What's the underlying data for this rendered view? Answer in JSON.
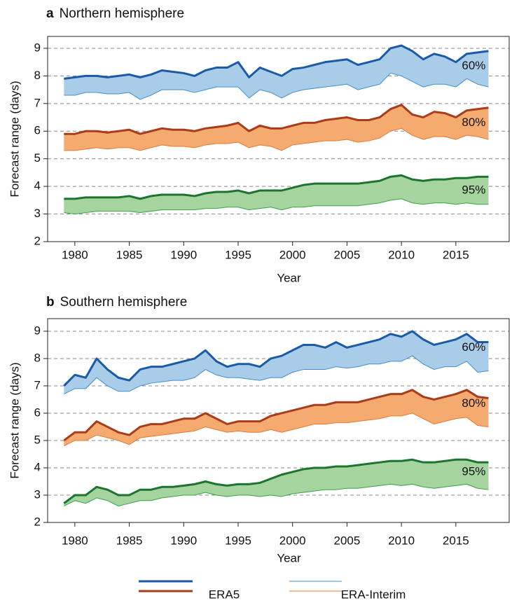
{
  "chart_data": [
    {
      "type": "line",
      "panel": "a",
      "title": "Northern hemisphere",
      "x_label": "Year",
      "y_label": "Forecast range (days)",
      "xlim": [
        1977.5,
        2019.9
      ],
      "ylim": [
        2,
        9.43
      ],
      "xticks": [
        1980,
        1985,
        1990,
        1995,
        2000,
        2005,
        2010,
        2015
      ],
      "yticks": [
        2,
        3,
        4,
        5,
        6,
        7,
        8,
        9
      ],
      "grid": true,
      "x": [
        1979,
        1980,
        1981,
        1982,
        1983,
        1984,
        1985,
        1986,
        1987,
        1988,
        1989,
        1990,
        1991,
        1992,
        1993,
        1994,
        1995,
        1996,
        1997,
        1998,
        1999,
        2000,
        2001,
        2002,
        2003,
        2004,
        2005,
        2006,
        2007,
        2008,
        2009,
        2010,
        2011,
        2012,
        2013,
        2014,
        2015,
        2016,
        2017,
        2018
      ],
      "bands": [
        {
          "label": "60%",
          "fill": "#a9cde8",
          "upper": {
            "color": "#1a5aa6",
            "width": 3,
            "values": [
              7.9,
              7.95,
              8.0,
              8.0,
              7.95,
              8.0,
              8.05,
              7.95,
              8.05,
              8.2,
              8.15,
              8.1,
              8.0,
              8.2,
              8.3,
              8.3,
              8.5,
              7.95,
              8.3,
              8.15,
              8.0,
              8.25,
              8.3,
              8.4,
              8.5,
              8.55,
              8.6,
              8.4,
              8.5,
              8.6,
              9.0,
              9.1,
              8.9,
              8.6,
              8.8,
              8.7,
              8.5,
              8.8,
              8.85,
              8.9
            ]
          },
          "lower": {
            "color": "#3d8fd1",
            "width": 1,
            "values": [
              7.3,
              7.3,
              7.4,
              7.4,
              7.35,
              7.35,
              7.4,
              7.15,
              7.3,
              7.5,
              7.5,
              7.5,
              7.4,
              7.5,
              7.6,
              7.6,
              7.6,
              7.2,
              7.5,
              7.4,
              7.2,
              7.4,
              7.5,
              7.55,
              7.6,
              7.65,
              7.7,
              7.5,
              7.6,
              7.7,
              8.1,
              8.0,
              7.8,
              7.6,
              7.7,
              7.7,
              7.6,
              7.9,
              7.7,
              7.6
            ]
          }
        },
        {
          "label": "80%",
          "fill": "#f5aa70",
          "upper": {
            "color": "#a83c1c",
            "width": 3,
            "values": [
              5.9,
              5.9,
              6.0,
              6.0,
              5.95,
              6.0,
              6.05,
              5.9,
              6.0,
              6.1,
              6.05,
              6.05,
              6.0,
              6.1,
              6.15,
              6.2,
              6.3,
              6.0,
              6.2,
              6.1,
              6.1,
              6.2,
              6.3,
              6.3,
              6.4,
              6.45,
              6.5,
              6.4,
              6.4,
              6.5,
              6.8,
              6.95,
              6.6,
              6.5,
              6.7,
              6.65,
              6.5,
              6.75,
              6.8,
              6.85
            ]
          },
          "lower": {
            "color": "#e8782e",
            "width": 1,
            "values": [
              5.3,
              5.3,
              5.35,
              5.4,
              5.35,
              5.4,
              5.4,
              5.3,
              5.4,
              5.5,
              5.45,
              5.45,
              5.4,
              5.5,
              5.55,
              5.55,
              5.6,
              5.4,
              5.5,
              5.45,
              5.3,
              5.5,
              5.55,
              5.6,
              5.65,
              5.65,
              5.7,
              5.6,
              5.65,
              5.75,
              6.0,
              6.1,
              5.85,
              5.7,
              5.8,
              5.8,
              5.7,
              5.85,
              5.8,
              5.7
            ]
          }
        },
        {
          "label": "95%",
          "fill": "#a5d49e",
          "upper": {
            "color": "#1c7430",
            "width": 3,
            "values": [
              3.55,
              3.55,
              3.6,
              3.6,
              3.6,
              3.6,
              3.65,
              3.55,
              3.65,
              3.7,
              3.7,
              3.7,
              3.65,
              3.75,
              3.8,
              3.8,
              3.85,
              3.75,
              3.85,
              3.85,
              3.85,
              3.95,
              4.05,
              4.1,
              4.1,
              4.1,
              4.1,
              4.1,
              4.15,
              4.2,
              4.35,
              4.4,
              4.25,
              4.2,
              4.25,
              4.25,
              4.3,
              4.3,
              4.35,
              4.35
            ]
          },
          "lower": {
            "color": "#36a346",
            "width": 1,
            "values": [
              3.05,
              3.0,
              3.05,
              3.1,
              3.1,
              3.1,
              3.1,
              3.05,
              3.1,
              3.15,
              3.15,
              3.15,
              3.15,
              3.2,
              3.2,
              3.25,
              3.25,
              3.15,
              3.2,
              3.25,
              3.15,
              3.25,
              3.25,
              3.3,
              3.3,
              3.3,
              3.3,
              3.3,
              3.35,
              3.4,
              3.5,
              3.55,
              3.4,
              3.35,
              3.4,
              3.4,
              3.35,
              3.4,
              3.35,
              3.35
            ]
          }
        }
      ]
    },
    {
      "type": "line",
      "panel": "b",
      "title": "Southern hemisphere",
      "x_label": "Year",
      "y_label": "Forecast range (days)",
      "xlim": [
        1977.5,
        2019.9
      ],
      "ylim": [
        2,
        9.46
      ],
      "xticks": [
        1980,
        1985,
        1990,
        1995,
        2000,
        2005,
        2010,
        2015
      ],
      "yticks": [
        2,
        3,
        4,
        5,
        6,
        7,
        8,
        9
      ],
      "grid": true,
      "x": [
        1979,
        1980,
        1981,
        1982,
        1983,
        1984,
        1985,
        1986,
        1987,
        1988,
        1989,
        1990,
        1991,
        1992,
        1993,
        1994,
        1995,
        1996,
        1997,
        1998,
        1999,
        2000,
        2001,
        2002,
        2003,
        2004,
        2005,
        2006,
        2007,
        2008,
        2009,
        2010,
        2011,
        2012,
        2013,
        2014,
        2015,
        2016,
        2017,
        2018
      ],
      "bands": [
        {
          "label": "60%",
          "fill": "#a9cde8",
          "upper": {
            "color": "#1a5aa6",
            "width": 3,
            "values": [
              7.0,
              7.4,
              7.3,
              8.0,
              7.6,
              7.3,
              7.2,
              7.6,
              7.7,
              7.7,
              7.8,
              7.9,
              8.0,
              8.3,
              7.9,
              7.7,
              7.8,
              7.8,
              7.7,
              8.0,
              8.1,
              8.3,
              8.5,
              8.5,
              8.4,
              8.6,
              8.4,
              8.5,
              8.6,
              8.7,
              8.9,
              8.8,
              9.0,
              8.7,
              8.5,
              8.6,
              8.7,
              8.9,
              8.6,
              8.6
            ]
          },
          "lower": {
            "color": "#3d8fd1",
            "width": 1,
            "values": [
              6.7,
              6.9,
              6.9,
              7.3,
              7.0,
              6.8,
              6.8,
              7.0,
              7.1,
              7.15,
              7.2,
              7.2,
              7.3,
              7.6,
              7.4,
              7.3,
              7.3,
              7.25,
              7.2,
              7.3,
              7.3,
              7.5,
              7.6,
              7.6,
              7.6,
              7.7,
              7.65,
              7.7,
              7.8,
              7.8,
              7.9,
              7.9,
              8.1,
              7.8,
              7.6,
              7.7,
              7.7,
              7.9,
              7.5,
              7.55
            ]
          }
        },
        {
          "label": "80%",
          "fill": "#f5aa70",
          "upper": {
            "color": "#a83c1c",
            "width": 3,
            "values": [
              5.0,
              5.3,
              5.3,
              5.7,
              5.5,
              5.3,
              5.2,
              5.5,
              5.6,
              5.6,
              5.7,
              5.8,
              5.8,
              6.0,
              5.8,
              5.6,
              5.7,
              5.7,
              5.7,
              5.9,
              6.0,
              6.1,
              6.2,
              6.3,
              6.3,
              6.4,
              6.4,
              6.4,
              6.5,
              6.6,
              6.7,
              6.7,
              6.85,
              6.6,
              6.5,
              6.6,
              6.7,
              6.85,
              6.6,
              6.55
            ]
          },
          "lower": {
            "color": "#e8782e",
            "width": 1,
            "values": [
              4.8,
              5.0,
              5.0,
              5.2,
              5.1,
              5.0,
              4.85,
              5.1,
              5.15,
              5.2,
              5.25,
              5.3,
              5.35,
              5.5,
              5.4,
              5.3,
              5.35,
              5.3,
              5.3,
              5.4,
              5.3,
              5.4,
              5.5,
              5.6,
              5.6,
              5.65,
              5.65,
              5.7,
              5.75,
              5.8,
              5.9,
              5.9,
              6.0,
              5.8,
              5.6,
              5.7,
              5.8,
              5.85,
              5.55,
              5.5
            ]
          }
        },
        {
          "label": "95%",
          "fill": "#a5d49e",
          "upper": {
            "color": "#1c7430",
            "width": 3,
            "values": [
              2.7,
              3.0,
              3.0,
              3.3,
              3.2,
              3.0,
              3.0,
              3.2,
              3.2,
              3.3,
              3.3,
              3.35,
              3.4,
              3.5,
              3.4,
              3.35,
              3.4,
              3.4,
              3.45,
              3.6,
              3.75,
              3.85,
              3.95,
              4.0,
              4.0,
              4.05,
              4.05,
              4.1,
              4.15,
              4.2,
              4.25,
              4.25,
              4.3,
              4.2,
              4.2,
              4.25,
              4.3,
              4.3,
              4.2,
              4.2
            ]
          },
          "lower": {
            "color": "#36a346",
            "width": 1,
            "values": [
              2.6,
              2.8,
              2.7,
              2.9,
              2.8,
              2.6,
              2.7,
              2.8,
              2.8,
              2.9,
              2.95,
              3.0,
              3.0,
              3.1,
              3.0,
              2.95,
              3.0,
              3.0,
              2.95,
              3.0,
              2.95,
              3.05,
              3.1,
              3.15,
              3.2,
              3.2,
              3.25,
              3.25,
              3.3,
              3.35,
              3.4,
              3.35,
              3.4,
              3.3,
              3.25,
              3.3,
              3.35,
              3.4,
              3.25,
              3.2
            ]
          }
        }
      ]
    }
  ],
  "legend": [
    {
      "name": "ERA5",
      "colors": [
        "#1a5aa6",
        "#a83c1c"
      ],
      "width": 3
    },
    {
      "name": "ERA-Interim",
      "colors": [
        "#3d8fd1",
        "#e8782e"
      ],
      "width": 1
    }
  ]
}
